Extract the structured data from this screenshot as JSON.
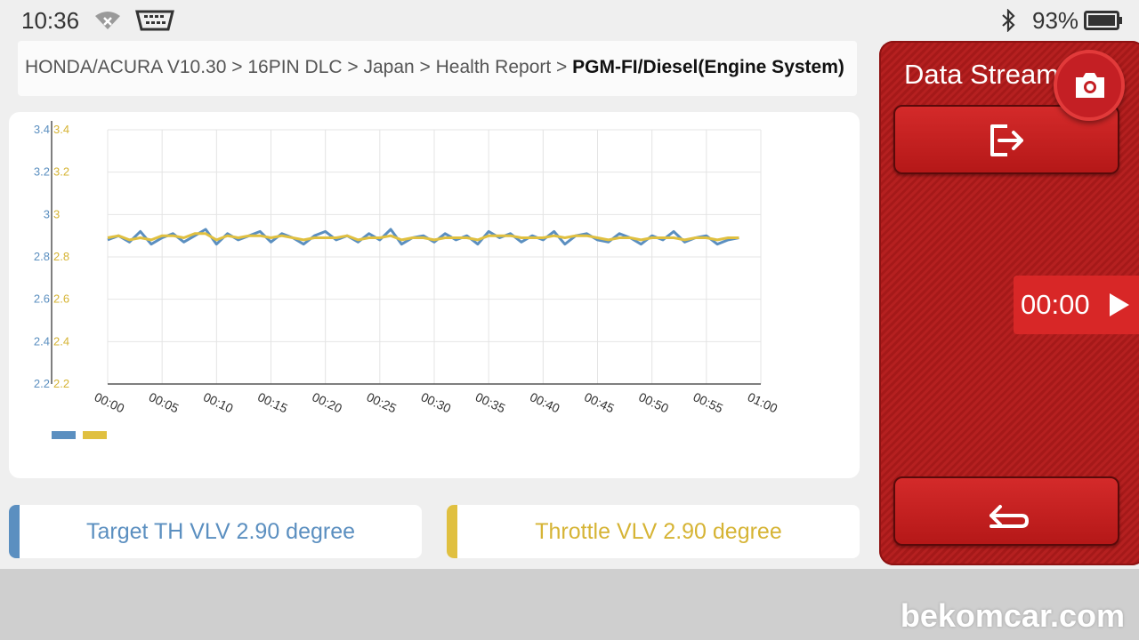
{
  "status_bar": {
    "time": "10:36",
    "battery": "93%",
    "icons": [
      "wifi-icon",
      "obd-connector-icon",
      "bluetooth-icon",
      "battery-icon"
    ]
  },
  "breadcrumb": {
    "path": "HONDA/ACURA V10.30 > 16PIN DLC > Japan > Health Report > ",
    "current": "PGM-FI/Diesel(Engine System)"
  },
  "panel": {
    "title": "Data Stream",
    "timer": "00:00",
    "icons": [
      "camera-icon",
      "export-icon",
      "play-icon",
      "back-icon"
    ]
  },
  "readings": [
    {
      "label": "Target TH VLV 2.90 degree",
      "color": "#5b8fc0"
    },
    {
      "label": "Throttle VLV 2.90 degree",
      "color": "#e0c040"
    }
  ],
  "watermark": "bekomcar.com",
  "colors": {
    "accent": "#c41f24",
    "series_blue": "#5b8fc0",
    "series_yellow": "#e0c040"
  },
  "chart_data": {
    "type": "line",
    "x_tick_labels": [
      "00:00",
      "00:05",
      "00:10",
      "00:15",
      "00:20",
      "00:25",
      "00:30",
      "00:35",
      "00:40",
      "00:45",
      "00:50",
      "00:55",
      "01:00"
    ],
    "y_tick_labels": [
      "3.4",
      "3.2",
      "3",
      "2.8",
      "2.6",
      "2.4",
      "2.2"
    ],
    "ylim": [
      2.2,
      3.4
    ],
    "xlim_seconds": [
      0,
      60
    ],
    "grid": true,
    "series": [
      {
        "color": "#5b8fc0",
        "x": [
          0,
          1,
          2,
          3,
          4,
          5,
          6,
          7,
          8,
          9,
          10,
          11,
          12,
          13,
          14,
          15,
          16,
          17,
          18,
          19,
          20,
          21,
          22,
          23,
          24,
          25,
          26,
          27,
          28,
          29,
          30,
          31,
          32,
          33,
          34,
          35,
          36,
          37,
          38,
          39,
          40,
          41,
          42,
          43,
          44,
          45,
          46,
          47,
          48,
          49,
          50,
          51,
          52,
          53,
          54,
          55,
          56,
          57,
          58
        ],
        "values": [
          2.88,
          2.9,
          2.87,
          2.92,
          2.86,
          2.89,
          2.91,
          2.87,
          2.9,
          2.93,
          2.86,
          2.91,
          2.88,
          2.9,
          2.92,
          2.87,
          2.91,
          2.89,
          2.86,
          2.9,
          2.92,
          2.88,
          2.9,
          2.87,
          2.91,
          2.88,
          2.93,
          2.86,
          2.89,
          2.9,
          2.87,
          2.91,
          2.88,
          2.9,
          2.86,
          2.92,
          2.89,
          2.91,
          2.87,
          2.9,
          2.88,
          2.92,
          2.86,
          2.9,
          2.91,
          2.88,
          2.87,
          2.91,
          2.89,
          2.86,
          2.9,
          2.88,
          2.92,
          2.87,
          2.89,
          2.9,
          2.86,
          2.88,
          2.89
        ]
      },
      {
        "color": "#e0c040",
        "x": [
          0,
          1,
          2,
          3,
          4,
          5,
          6,
          7,
          8,
          9,
          10,
          11,
          12,
          13,
          14,
          15,
          16,
          17,
          18,
          19,
          20,
          21,
          22,
          23,
          24,
          25,
          26,
          27,
          28,
          29,
          30,
          31,
          32,
          33,
          34,
          35,
          36,
          37,
          38,
          39,
          40,
          41,
          42,
          43,
          44,
          45,
          46,
          47,
          48,
          49,
          50,
          51,
          52,
          53,
          54,
          55,
          56,
          57,
          58
        ],
        "values": [
          2.89,
          2.9,
          2.88,
          2.89,
          2.88,
          2.9,
          2.9,
          2.89,
          2.91,
          2.91,
          2.88,
          2.9,
          2.89,
          2.9,
          2.9,
          2.89,
          2.9,
          2.89,
          2.88,
          2.89,
          2.89,
          2.89,
          2.9,
          2.88,
          2.89,
          2.89,
          2.9,
          2.88,
          2.89,
          2.89,
          2.88,
          2.89,
          2.89,
          2.89,
          2.88,
          2.9,
          2.9,
          2.9,
          2.89,
          2.89,
          2.89,
          2.9,
          2.89,
          2.9,
          2.9,
          2.89,
          2.88,
          2.89,
          2.89,
          2.88,
          2.89,
          2.89,
          2.89,
          2.88,
          2.89,
          2.89,
          2.88,
          2.89,
          2.89
        ]
      }
    ]
  }
}
